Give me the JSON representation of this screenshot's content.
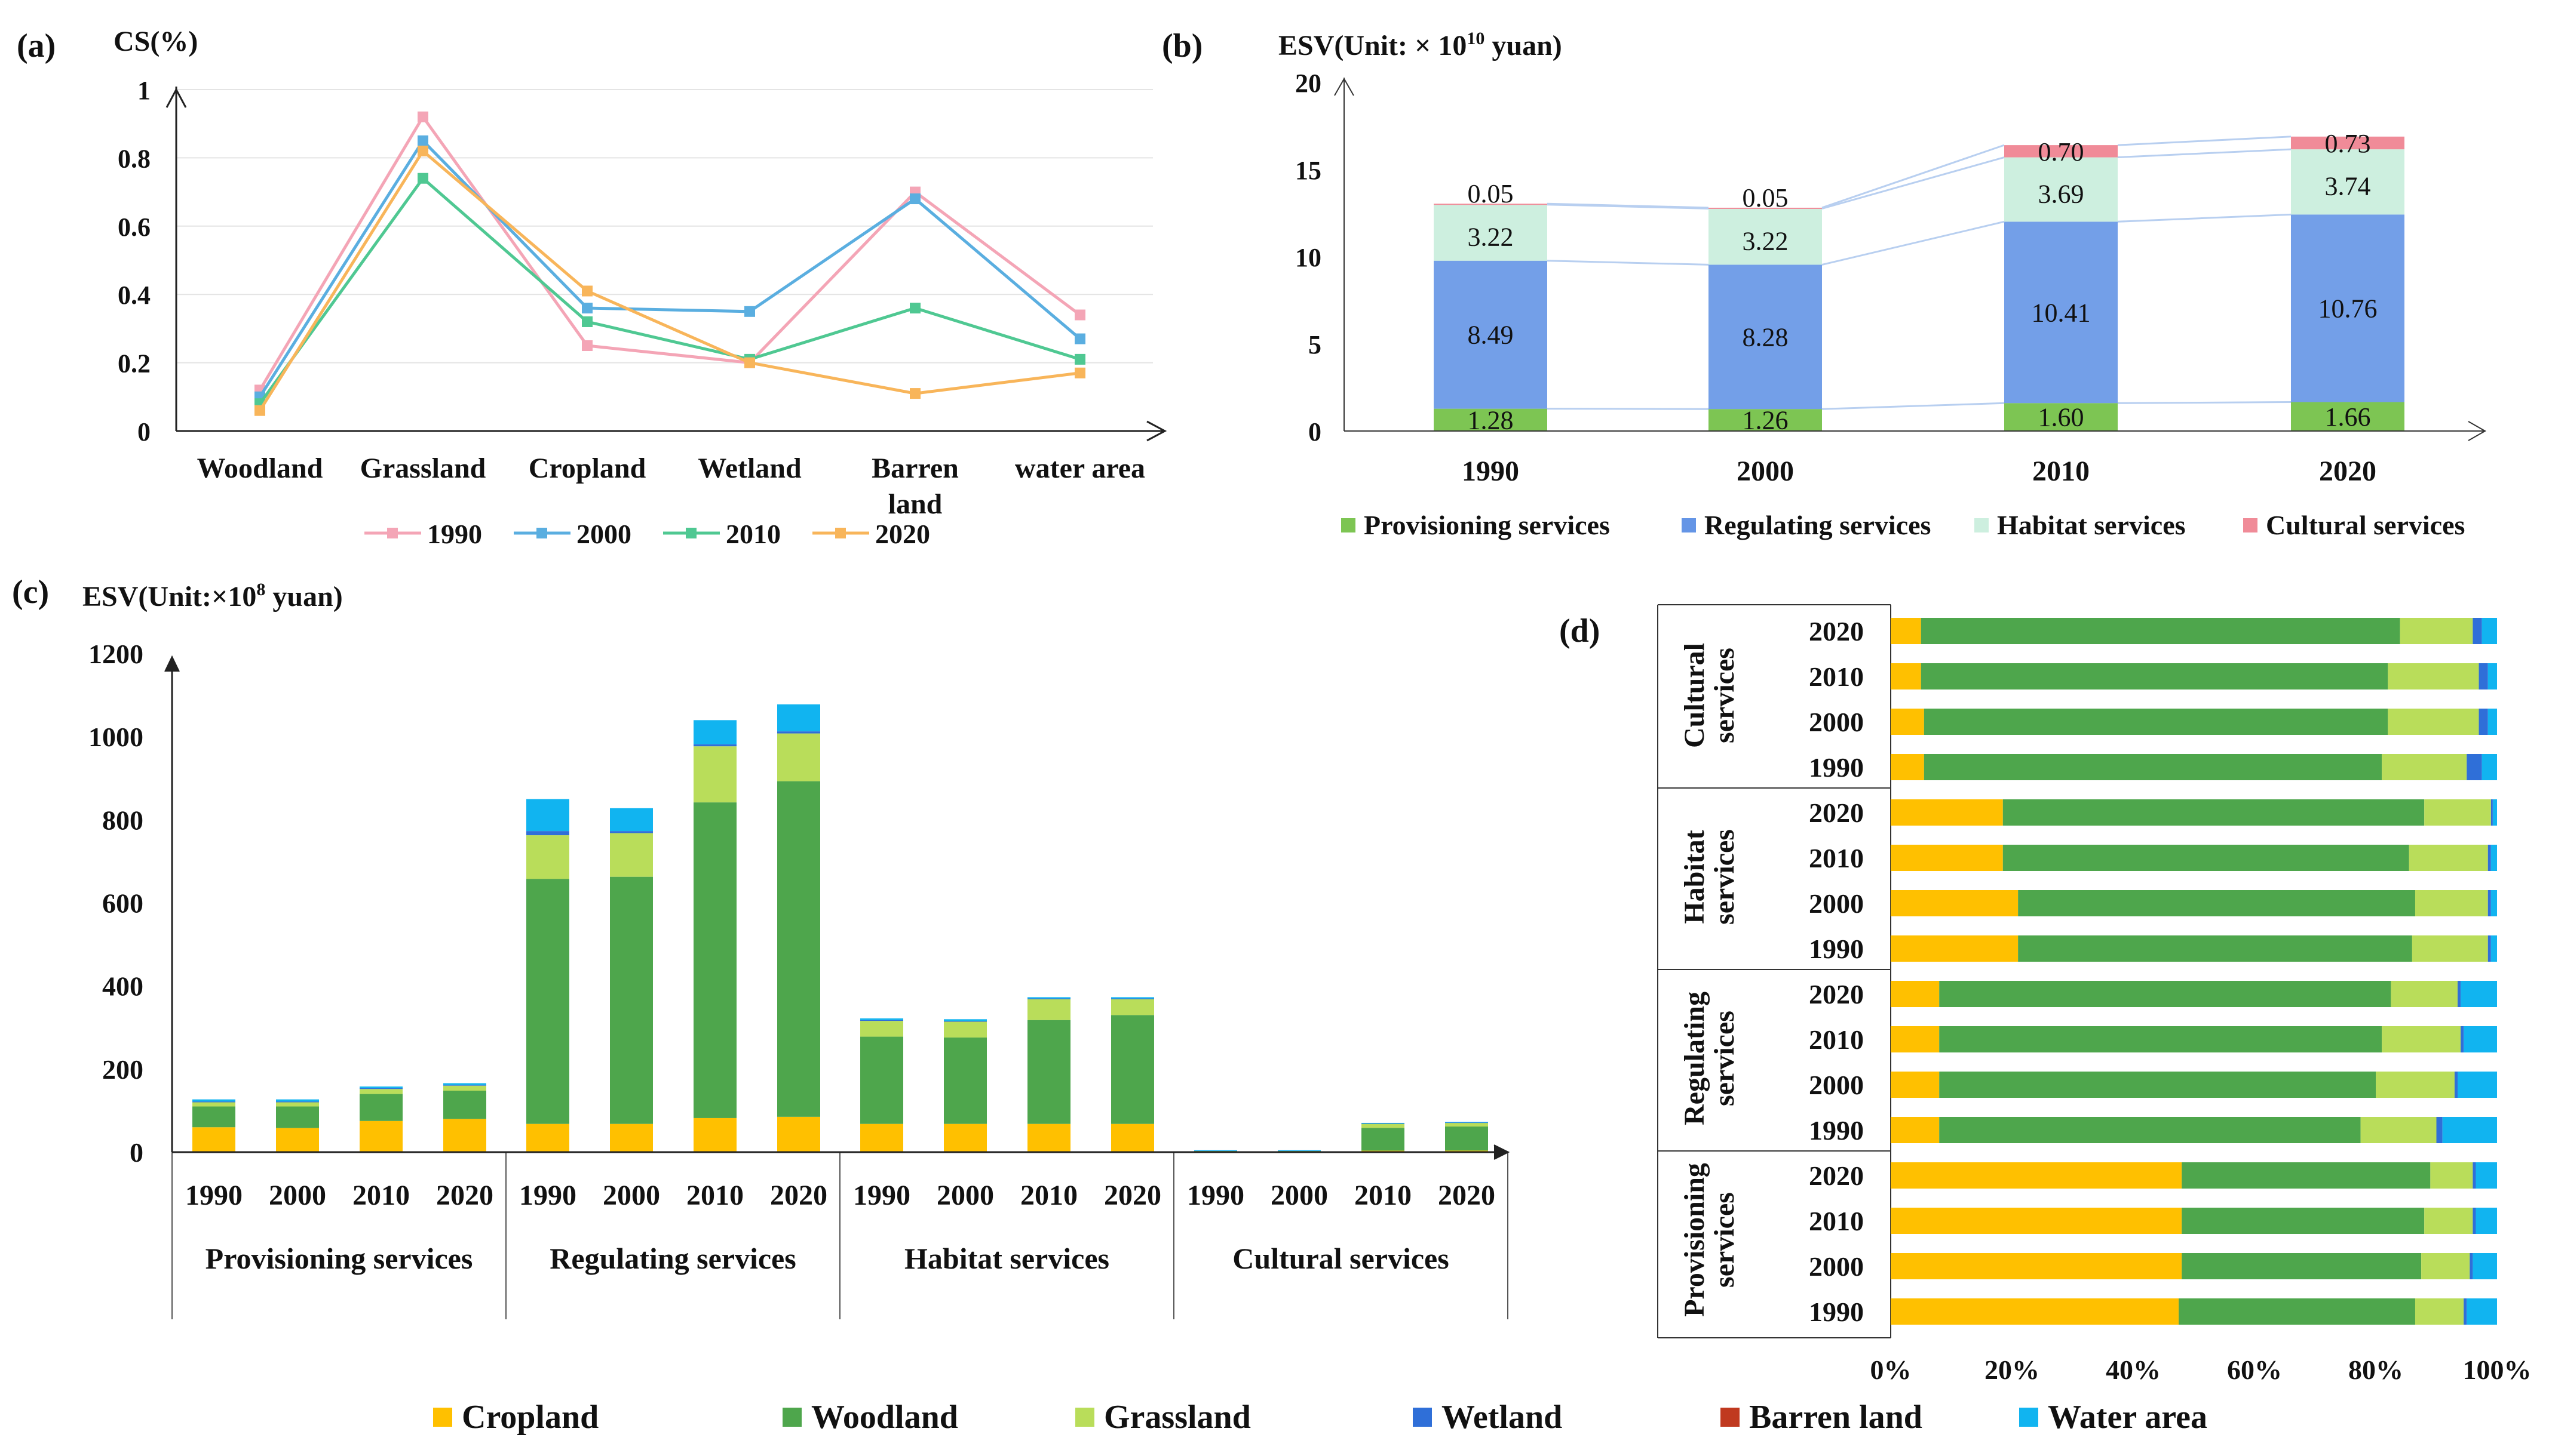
{
  "colors": {
    "y1990": "#F4A5B6",
    "y2000": "#5AAEE0",
    "y2010": "#4FC892",
    "y2020": "#F8B55A",
    "provisioning": "#7DC553",
    "regulating": "#6495E6",
    "habitat": "#CDEFDF",
    "cultural": "#F08B98",
    "cropland": "#FFC000",
    "woodland": "#4EA64C",
    "grassland": "#B9DD5A",
    "wetland": "#2F6FD8",
    "barren": "#C0391F",
    "water": "#11B4F0"
  },
  "chart_data": [
    {
      "panel": "(a)",
      "type": "line",
      "ylabel": "CS(%)",
      "ylim": [
        0,
        1
      ],
      "yticks": [
        "0",
        "0.2",
        "0.4",
        "0.6",
        "0.8",
        "1"
      ],
      "categories": [
        "Woodland",
        "Grassland",
        "Cropland",
        "Wetland",
        "Barren land",
        "water area"
      ],
      "series": [
        {
          "name": "1990",
          "values": [
            0.12,
            0.92,
            0.25,
            0.2,
            0.7,
            0.34
          ]
        },
        {
          "name": "2000",
          "values": [
            0.1,
            0.85,
            0.36,
            0.35,
            0.68,
            0.27
          ]
        },
        {
          "name": "2010",
          "values": [
            0.08,
            0.74,
            0.32,
            0.21,
            0.36,
            0.21
          ]
        },
        {
          "name": "2020",
          "values": [
            0.06,
            0.82,
            0.41,
            0.2,
            0.11,
            0.17
          ]
        }
      ]
    },
    {
      "panel": "(b)",
      "type": "bar",
      "stacked": true,
      "ylabel": "ESV(Unit: × 10",
      "ylabel_sup": "10",
      "ylabel_end": " yuan)",
      "ylim": [
        0,
        20
      ],
      "yticks": [
        "0",
        "5",
        "10",
        "15",
        "20"
      ],
      "categories": [
        "1990",
        "2000",
        "2010",
        "2020"
      ],
      "series": [
        {
          "name": "Provisioning services",
          "values": [
            1.28,
            1.26,
            1.6,
            1.66
          ],
          "labels": [
            "1.28",
            "1.26",
            "1.60",
            "1.66"
          ]
        },
        {
          "name": "Regulating services",
          "values": [
            8.49,
            8.28,
            10.41,
            10.76
          ],
          "labels": [
            "8.49",
            "8.28",
            "10.41",
            "10.76"
          ]
        },
        {
          "name": "Habitat services",
          "values": [
            3.22,
            3.22,
            3.69,
            3.74
          ],
          "labels": [
            "3.22",
            "3.22",
            "3.69",
            "3.74"
          ]
        },
        {
          "name": "Cultural services",
          "values": [
            0.05,
            0.05,
            0.7,
            0.73
          ],
          "labels": [
            "0.05",
            "0.05",
            "0.70",
            "0.73"
          ]
        }
      ]
    },
    {
      "panel": "(c)",
      "type": "bar",
      "stacked": true,
      "ylabel": "ESV(Unit:×10",
      "ylabel_sup": "8",
      "ylabel_end": " yuan)",
      "ylim": [
        0,
        1200
      ],
      "yticks": [
        "0",
        "200",
        "400",
        "600",
        "800",
        "1000",
        "1200"
      ],
      "groups": [
        "Provisioning services",
        "Regulating services",
        "Habitat services",
        "Cultural  services"
      ],
      "years": [
        "1990",
        "2000",
        "2010",
        "2020"
      ],
      "series_names": [
        "Cropland",
        "Woodland",
        "Grassland",
        "Wetland",
        "Barren land",
        "Water area"
      ],
      "values": [
        [
          [
            60,
            50,
            10,
            2,
            0,
            5
          ],
          [
            58,
            52,
            10,
            2,
            0,
            5
          ],
          [
            75,
            65,
            12,
            2,
            0,
            4
          ],
          [
            80,
            68,
            12,
            2,
            0,
            4
          ]
        ],
        [
          [
            68,
            590,
            105,
            10,
            0,
            77
          ],
          [
            68,
            595,
            105,
            5,
            0,
            55
          ],
          [
            82,
            760,
            135,
            5,
            0,
            58
          ],
          [
            85,
            808,
            115,
            5,
            0,
            65
          ]
        ],
        [
          [
            68,
            210,
            38,
            2,
            0,
            4
          ],
          [
            68,
            208,
            38,
            2,
            0,
            4
          ],
          [
            68,
            250,
            50,
            2,
            0,
            3
          ],
          [
            68,
            262,
            38,
            2,
            0,
            3
          ]
        ],
        [
          [
            0.3,
            3,
            0.8,
            0.2,
            0,
            0.2
          ],
          [
            0.3,
            3,
            0.8,
            0.2,
            0,
            0.2
          ],
          [
            3.5,
            55,
            10,
            1,
            0,
            1
          ],
          [
            3.7,
            58,
            9,
            1,
            0,
            1
          ]
        ]
      ]
    },
    {
      "panel": "(d)",
      "type": "bar",
      "orientation": "horizontal",
      "stacked_percent": true,
      "xticks": [
        "0%",
        "20%",
        "40%",
        "60%",
        "80%",
        "100%"
      ],
      "groups": [
        "Cultural services",
        "Habitat services",
        "Regulating services",
        "Provisioning services"
      ],
      "years": [
        "2020",
        "2010",
        "2000",
        "1990"
      ],
      "series_names": [
        "Cropland",
        "Woodland",
        "Grassland",
        "Wetland",
        "Barren land",
        "Water area"
      ],
      "values": [
        [
          [
            5,
            79,
            12,
            1.5,
            0,
            2.5
          ],
          [
            5,
            77,
            15,
            1.5,
            0,
            1.5
          ],
          [
            5.5,
            76.5,
            15,
            1.5,
            0,
            1.5
          ],
          [
            5.5,
            75.5,
            14,
            2.5,
            0,
            2.5
          ]
        ],
        [
          [
            18.5,
            69.5,
            11,
            0.3,
            0,
            0.7
          ],
          [
            18.5,
            67,
            13,
            0.5,
            0,
            1
          ],
          [
            21,
            65.5,
            12,
            0.5,
            0,
            1
          ],
          [
            21,
            65,
            12.5,
            0.5,
            0,
            1
          ]
        ],
        [
          [
            8,
            74.5,
            11,
            0.5,
            0,
            6
          ],
          [
            8,
            73,
            13,
            0.5,
            0,
            5.5
          ],
          [
            8,
            72,
            13,
            0.5,
            0,
            6.5
          ],
          [
            8,
            69.5,
            12.5,
            1,
            0,
            9
          ]
        ],
        [
          [
            48,
            41,
            7,
            0.5,
            0,
            3.5
          ],
          [
            48,
            40,
            8,
            0.5,
            0,
            3.5
          ],
          [
            48,
            39.5,
            8,
            0.5,
            0,
            4
          ],
          [
            47.5,
            39,
            8,
            0.5,
            0,
            5
          ]
        ]
      ]
    }
  ],
  "legend_bottom": [
    "Cropland",
    "Woodland",
    "Grassland",
    "Wetland",
    "Barren land",
    "Water area"
  ]
}
